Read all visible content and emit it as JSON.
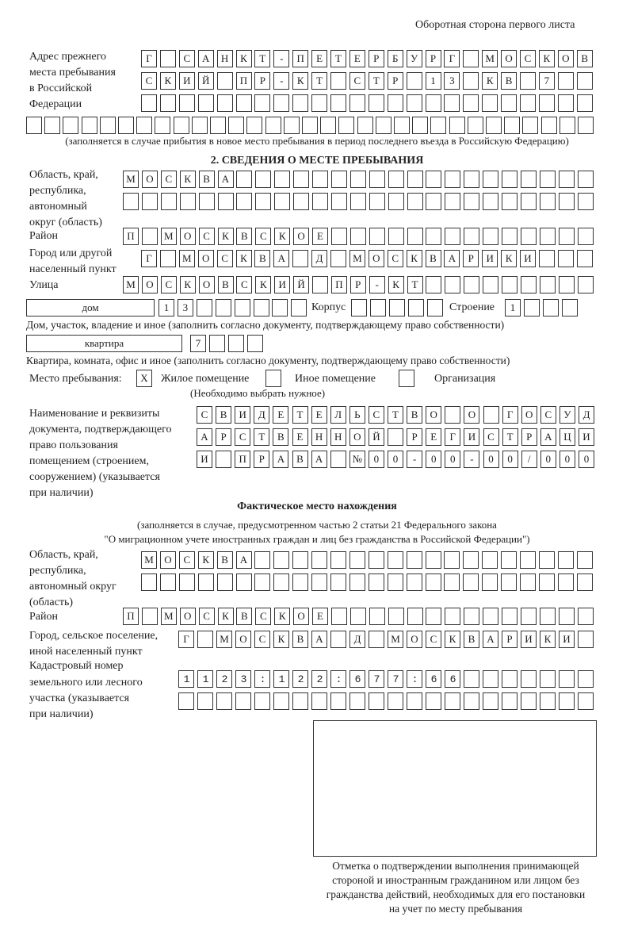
{
  "header": "Оборотная сторона первого листа",
  "prev_address": {
    "label": [
      "Адрес прежнего",
      "места пребывания",
      "в Российской",
      "Федерации"
    ],
    "rows": [
      "Г САНКТ-ПЕТЕРБУРГ МОСКОВ",
      "СКИЙ ПР-КТ СТР 13 КВ 7",
      "",
      ""
    ],
    "note": "(заполняется в случае прибытия в новое место пребывания в период последнего въезда в Российскую Федерацию)"
  },
  "section2": {
    "title": "2. СВЕДЕНИЯ О МЕСТЕ ПРЕБЫВАНИЯ",
    "region_label": [
      "Область, край,",
      "республика,",
      "автономный",
      "округ (область)"
    ],
    "region_rows": [
      "МОСКВА",
      ""
    ],
    "district_label": "Район",
    "district_row": "П МОСКВСКОЕ",
    "city_label": [
      "Город или другой",
      "населенный пункт"
    ],
    "city_row": "Г МОСКВА Д МОСКВАРИКИ",
    "street_label": "Улица",
    "street_row": "МОСКОВСКИЙ ПР-КТ",
    "house_type": "дом",
    "house_row": "13",
    "korpus_label": "Корпус",
    "korpus_row": "",
    "building_label": "Строение",
    "building_row": "1",
    "house_note": "Дом, участок, владение и иное (заполнить согласно документу, подтверждающему право собственности)",
    "flat_type": "квартира",
    "flat_row": "7",
    "flat_note": "Квартира, комната, офис и иное (заполнить согласно документу, подтверждающему право собственности)",
    "stay_label": "Место пребывания:",
    "stay_options": [
      {
        "label": "Жилое помещение",
        "mark": "Х",
        "checked": true
      },
      {
        "label": "Иное помещение",
        "mark": "",
        "checked": false
      },
      {
        "label": "Организация",
        "mark": "",
        "checked": false
      }
    ],
    "stay_note": "(Необходимо выбрать нужное)",
    "doc_label": [
      "Наименование и реквизиты",
      "документа, подтверждающего",
      "право пользования",
      "помещением (строением,",
      "сооружением) (указывается",
      "при наличии)"
    ],
    "doc_rows": [
      "СВИДЕТЕЛЬСТВО О ГОСУД",
      "АРСТВЕННОЙ РЕГИСТРАЦИ",
      "И ПРАВА №00-00-00/000"
    ]
  },
  "actual": {
    "title": "Фактическое место нахождения",
    "note": [
      "(заполняется в случае, предусмотренном частью 2 статьи 21 Федерального закона",
      "\"О миграционном учете иностранных граждан и лиц без гражданства в Российской Федерации\")"
    ],
    "region_label": [
      "Область, край,",
      "республика,",
      "автономный округ",
      "(область)"
    ],
    "region_rows": [
      "МОСКВА",
      ""
    ],
    "district_label": "Район",
    "district_row": "П МОСКВСКОЕ",
    "city_label": [
      "Город, сельское поселение,",
      "иной населенный пункт"
    ],
    "city_row": "Г МОСКВА Д МОСКВАРИКИ",
    "cadastral_label": [
      "Кадастровый номер",
      "земельного или лесного",
      "участка (указывается",
      "при наличии)"
    ],
    "cadastral_rows": [
      "1123:122:677:66",
      ""
    ]
  },
  "stamp_caption": [
    "Отметка о подтверждении выполнения принимающей",
    "стороной и иностранным гражданином или лицом без",
    "гражданства действий, необходимых для его постановки",
    "на учет по месту пребывания"
  ]
}
